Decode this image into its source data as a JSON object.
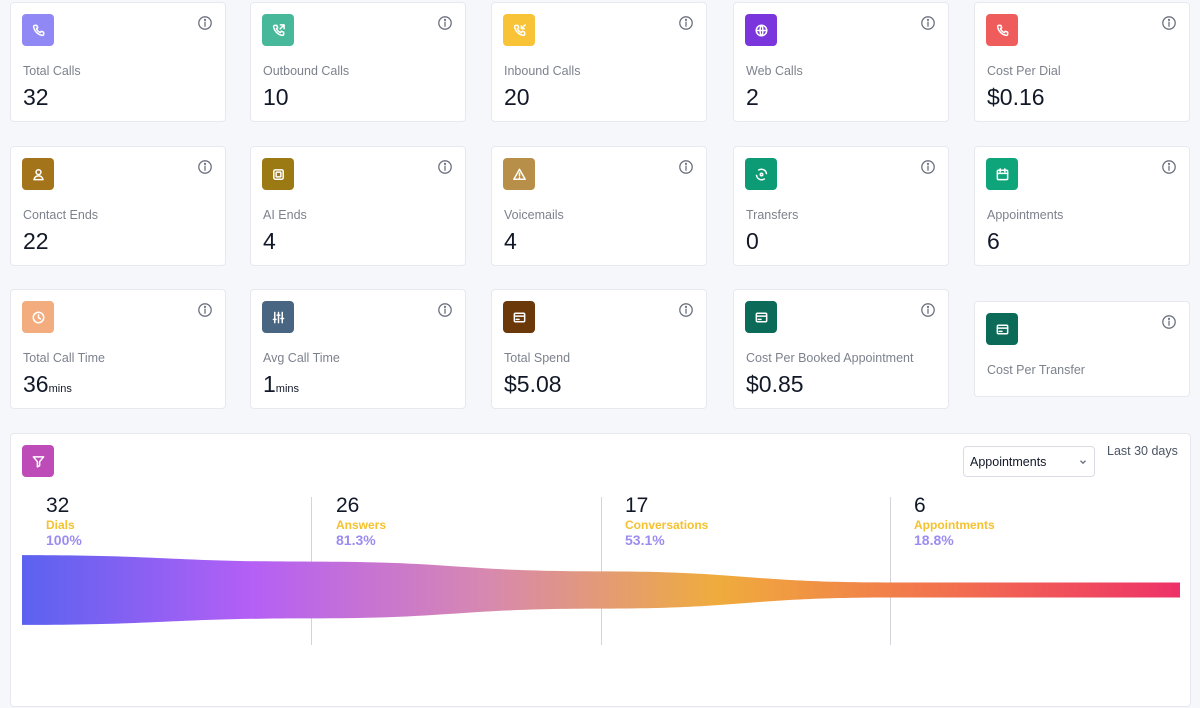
{
  "stats": [
    {
      "label": "Total Calls",
      "value": "32",
      "unit": "",
      "icon": "phone-icon",
      "color": "#8f88f5"
    },
    {
      "label": "Outbound Calls",
      "value": "10",
      "unit": "",
      "icon": "phone-outgoing-icon",
      "color": "#47b899"
    },
    {
      "label": "Inbound Calls",
      "value": "20",
      "unit": "",
      "icon": "phone-incoming-icon",
      "color": "#f8c337"
    },
    {
      "label": "Web Calls",
      "value": "2",
      "unit": "",
      "icon": "globe-icon",
      "color": "#7b35dc"
    },
    {
      "label": "Cost Per Dial",
      "value": "$0.16",
      "unit": "",
      "icon": "phone-icon",
      "color": "#ef5c5c"
    },
    {
      "label": "Contact Ends",
      "value": "22",
      "unit": "",
      "icon": "user-icon",
      "color": "#a4741a"
    },
    {
      "label": "AI Ends",
      "value": "4",
      "unit": "",
      "icon": "cpu-icon",
      "color": "#9b7a14"
    },
    {
      "label": "Voicemails",
      "value": "4",
      "unit": "",
      "icon": "warning-icon",
      "color": "#b88f48"
    },
    {
      "label": "Transfers",
      "value": "0",
      "unit": "",
      "icon": "transfer-icon",
      "color": "#0d9b76"
    },
    {
      "label": "Appointments",
      "value": "6",
      "unit": "",
      "icon": "calendar-icon",
      "color": "#0fa57a"
    },
    {
      "label": "Total Call Time",
      "value": "36",
      "unit": "mins",
      "icon": "clock-icon",
      "color": "#f2ac7e"
    },
    {
      "label": "Avg Call Time",
      "value": "1",
      "unit": "mins",
      "icon": "sliders-icon",
      "color": "#486582"
    },
    {
      "label": "Total Spend",
      "value": "$5.08",
      "unit": "",
      "icon": "card-icon",
      "color": "#6a3809"
    },
    {
      "label": "Cost Per Booked Appointment",
      "value": "$0.85",
      "unit": "",
      "icon": "card-icon",
      "color": "#0b6b58"
    },
    {
      "label": "Cost Per Transfer",
      "value": "",
      "unit": "",
      "icon": "card-icon",
      "color": "#0b6b58"
    }
  ],
  "funnel": {
    "icon": "filter-icon",
    "select_value": "Appointments",
    "range_label": "Last 30 days",
    "stages": [
      {
        "count": "32",
        "name": "Dials",
        "percent": "100%",
        "value": 32
      },
      {
        "count": "26",
        "name": "Answers",
        "percent": "81.3%",
        "value": 26
      },
      {
        "count": "17",
        "name": "Conversations",
        "percent": "53.1%",
        "value": 17
      },
      {
        "count": "6",
        "name": "Appointments",
        "percent": "18.8%",
        "value": 6
      }
    ],
    "gradient": [
      "#5b62f0",
      "#b55ff5",
      "#d788b0",
      "#efac3d",
      "#f2704e",
      "#ee3169"
    ]
  }
}
